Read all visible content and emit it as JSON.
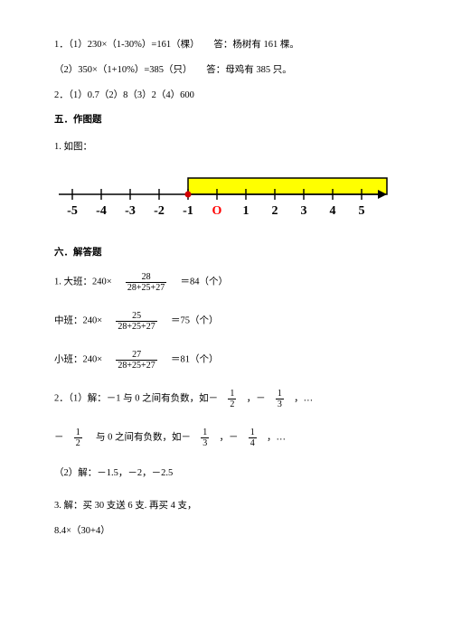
{
  "p1": "1．（1）230×（1-30%）=161（棵）　　答：杨树有 161 棵。",
  "p2": "（2）350×（1+10%）=385（只）　　答：母鸡有 385 只。",
  "p3": "2．（1）0.7（2）8（3）2（4）600",
  "sec5_title": "五．作图题",
  "sec5_item": "1. 如图：",
  "numberline": {
    "labels": [
      "-5",
      "-4",
      "-3",
      "-2",
      "-1",
      "0",
      "1",
      "2",
      "3",
      "4",
      "5"
    ],
    "zero_color": "#ff0000",
    "highlight_start": -1,
    "highlight_end": 5,
    "bar_fill": "#ffff00",
    "bar_stroke": "#000000",
    "start_dot_fill": "#d30000"
  },
  "sec6_title": "六．解答题",
  "q1_prefix_a": "1. 大班：240×",
  "q1_num_a": "28",
  "q1_den_a": "28+25+27",
  "q1_suffix_a": "＝84（个）",
  "q1_prefix_b": "中班：240×",
  "q1_num_b": "25",
  "q1_den_b": "28+25+27",
  "q1_suffix_b": "＝75（个）",
  "q1_prefix_c": "小班：240×",
  "q1_num_c": "27",
  "q1_den_c": "28+25+27",
  "q1_suffix_c": "＝81（个）",
  "q2_a_pre": "2．（1）解：－1 与 0 之间有负数，如－",
  "f_1_2_n": "1",
  "f_1_2_d": "2",
  "comma_neg": "，－",
  "f_1_3_n": "1",
  "f_1_3_d": "3",
  "ellips": "，…",
  "q2_b_pre1": "－",
  "q2_b_text": "与 0 之间有负数，如－",
  "f_1_4_n": "1",
  "f_1_4_d": "4",
  "q2_c": "（2）解：－1.5，－2，－2.5",
  "q3_a": "3. 解：买 30 支送 6 支. 再买 4 支，",
  "q3_b": "8.4×（30+4）"
}
